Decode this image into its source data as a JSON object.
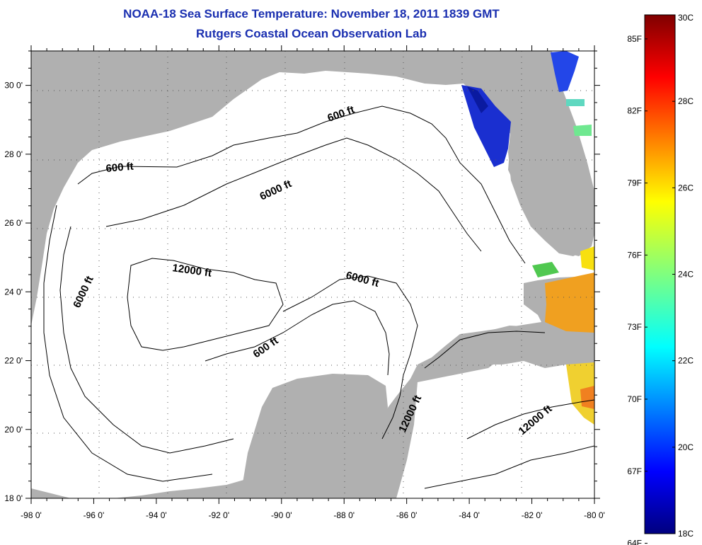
{
  "title": "NOAA-18 Sea Surface Temperature:  November 18, 2011 1839 GMT",
  "subtitle": "Rutgers Coastal Ocean Observation Lab",
  "map": {
    "lon_range": [
      -98,
      -80
    ],
    "lat_range": [
      18,
      31
    ],
    "lon_labels": [
      "-98 0'",
      "-96 0'",
      "-94 0'",
      "-92 0'",
      "-90 0'",
      "-88 0'",
      "-86 0'",
      "-84 0'",
      "-82 0'",
      "-80 0'"
    ],
    "lat_labels": [
      "18 0'",
      "20 0'",
      "22 0'",
      "24 0'",
      "26 0'",
      "28 0'",
      "30 0'"
    ],
    "land_color": "#b0b0b0",
    "water_color": "#ffffff",
    "grid": "dotted",
    "contour_labels": [
      "600 ft",
      "6000 ft",
      "12000 ft",
      "6000 ft",
      "6000 ft",
      "600 ft",
      "600 ft",
      "12000 ft",
      "12000 ft"
    ]
  },
  "colorbar": {
    "celsius_labels": [
      "30C",
      "28C",
      "26C",
      "24C",
      "22C",
      "20C",
      "18C"
    ],
    "fahrenheit_labels": [
      "85F",
      "82F",
      "79F",
      "76F",
      "73F",
      "70F",
      "67F",
      "64F"
    ],
    "min_c": 18,
    "max_c": 30
  }
}
